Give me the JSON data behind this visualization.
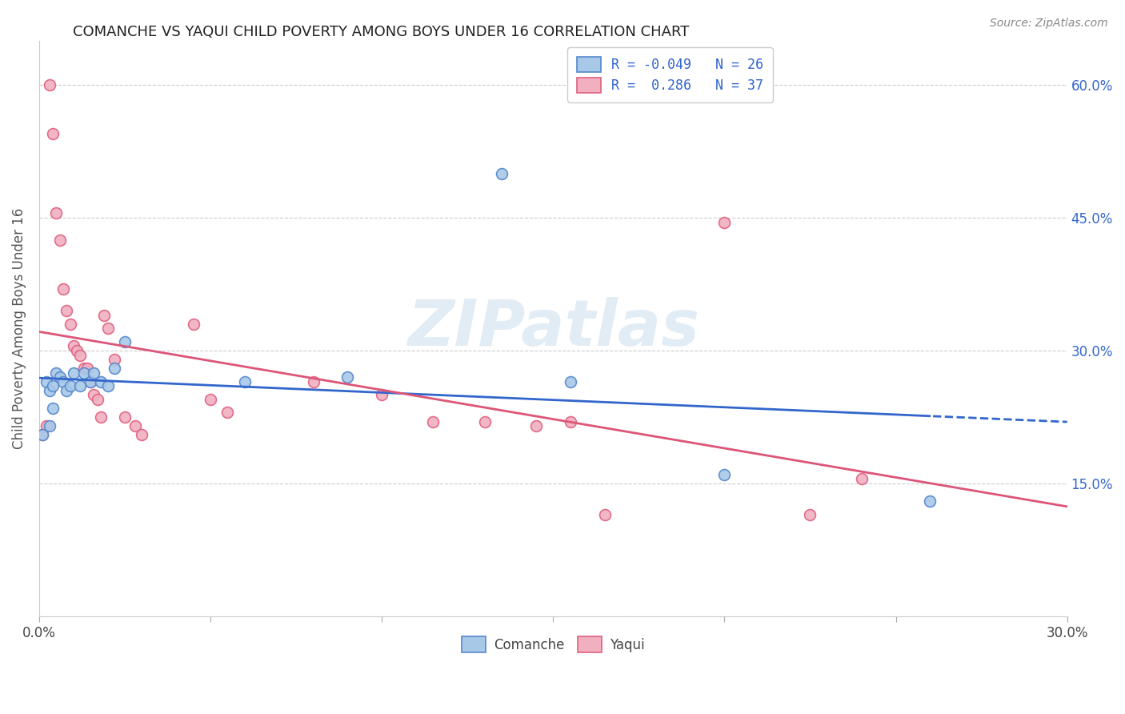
{
  "title": "COMANCHE VS YAQUI CHILD POVERTY AMONG BOYS UNDER 16 CORRELATION CHART",
  "source": "Source: ZipAtlas.com",
  "ylabel": "Child Poverty Among Boys Under 16",
  "watermark": "ZIPatlas",
  "xlim": [
    0.0,
    0.3
  ],
  "ylim": [
    0.0,
    0.65
  ],
  "xtick_positions": [
    0.0,
    0.05,
    0.1,
    0.15,
    0.2,
    0.25,
    0.3
  ],
  "xtick_labels": [
    "0.0%",
    "",
    "",
    "",
    "",
    "",
    "30.0%"
  ],
  "ytick_positions": [
    0.0,
    0.15,
    0.3,
    0.45,
    0.6
  ],
  "ytick_labels_right": [
    "",
    "15.0%",
    "30.0%",
    "45.0%",
    "60.0%"
  ],
  "comanche_x": [
    0.001,
    0.002,
    0.003,
    0.003,
    0.004,
    0.004,
    0.005,
    0.006,
    0.007,
    0.008,
    0.009,
    0.01,
    0.012,
    0.013,
    0.015,
    0.016,
    0.018,
    0.02,
    0.022,
    0.025,
    0.06,
    0.09,
    0.135,
    0.155,
    0.2,
    0.26
  ],
  "comanche_y": [
    0.205,
    0.265,
    0.215,
    0.255,
    0.235,
    0.26,
    0.275,
    0.27,
    0.265,
    0.255,
    0.26,
    0.275,
    0.26,
    0.275,
    0.265,
    0.275,
    0.265,
    0.26,
    0.28,
    0.31,
    0.265,
    0.27,
    0.5,
    0.265,
    0.16,
    0.13
  ],
  "yaqui_x": [
    0.001,
    0.002,
    0.003,
    0.004,
    0.005,
    0.006,
    0.007,
    0.008,
    0.009,
    0.01,
    0.011,
    0.012,
    0.013,
    0.014,
    0.015,
    0.016,
    0.017,
    0.018,
    0.019,
    0.02,
    0.022,
    0.025,
    0.028,
    0.03,
    0.045,
    0.05,
    0.055,
    0.08,
    0.1,
    0.115,
    0.13,
    0.145,
    0.155,
    0.165,
    0.2,
    0.225,
    0.24
  ],
  "yaqui_y": [
    0.205,
    0.215,
    0.6,
    0.545,
    0.455,
    0.425,
    0.37,
    0.345,
    0.33,
    0.305,
    0.3,
    0.295,
    0.28,
    0.28,
    0.265,
    0.25,
    0.245,
    0.225,
    0.34,
    0.325,
    0.29,
    0.225,
    0.215,
    0.205,
    0.33,
    0.245,
    0.23,
    0.265,
    0.25,
    0.22,
    0.22,
    0.215,
    0.22,
    0.115,
    0.445,
    0.115,
    0.155
  ],
  "comanche_color": "#a8c8e8",
  "yaqui_color": "#f0b0c0",
  "comanche_edge_color": "#5588cc",
  "yaqui_edge_color": "#e06080",
  "comanche_line_color": "#3366cc",
  "yaqui_line_color": "#dd5577",
  "comanche_R": "-0.049",
  "comanche_N": "26",
  "yaqui_R": "0.286",
  "yaqui_N": "37",
  "marker_size": 100,
  "marker_edge_width": 1.2
}
